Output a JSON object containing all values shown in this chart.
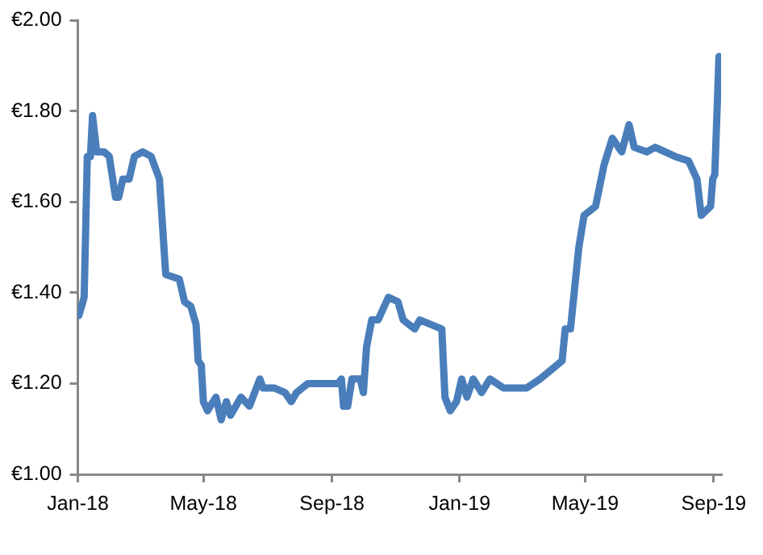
{
  "chart_data": {
    "type": "line",
    "x": [
      "2018-01-02",
      "2018-01-07",
      "2018-01-10",
      "2018-01-13",
      "2018-01-15",
      "2018-01-17",
      "2018-01-19",
      "2018-01-26",
      "2018-01-31",
      "2018-02-06",
      "2018-02-09",
      "2018-02-13",
      "2018-02-19",
      "2018-02-24",
      "2018-03-04",
      "2018-03-12",
      "2018-03-20",
      "2018-03-26",
      "2018-04-08",
      "2018-04-13",
      "2018-04-19",
      "2018-04-24",
      "2018-04-26",
      "2018-04-29",
      "2018-05-01",
      "2018-05-05",
      "2018-05-13",
      "2018-05-18",
      "2018-05-23",
      "2018-05-27",
      "2018-06-06",
      "2018-06-14",
      "2018-06-24",
      "2018-06-27",
      "2018-07-08",
      "2018-07-18",
      "2018-07-24",
      "2018-07-29",
      "2018-08-09",
      "2018-08-14",
      "2018-09-07",
      "2018-09-10",
      "2018-09-12",
      "2018-09-16",
      "2018-09-20",
      "2018-09-28",
      "2018-10-01",
      "2018-10-04",
      "2018-10-09",
      "2018-10-15",
      "2018-10-25",
      "2018-11-03",
      "2018-11-08",
      "2018-11-19",
      "2018-11-24",
      "2018-12-15",
      "2018-12-18",
      "2018-12-23",
      "2018-12-29",
      "2019-01-03",
      "2019-01-08",
      "2019-01-14",
      "2019-01-22",
      "2019-01-30",
      "2019-02-12",
      "2019-03-06",
      "2019-03-19",
      "2019-04-09",
      "2019-04-12",
      "2019-04-17",
      "2019-04-25",
      "2019-04-30",
      "2019-05-11",
      "2019-05-19",
      "2019-05-27",
      "2019-06-05",
      "2019-06-12",
      "2019-06-17",
      "2019-06-29",
      "2019-07-07",
      "2019-07-26",
      "2019-08-08",
      "2019-08-16",
      "2019-08-20",
      "2019-08-29",
      "2019-08-31",
      "2019-09-02",
      "2019-09-06"
    ],
    "series": [
      {
        "color": "#4a7ebb",
        "values": [
          1.35,
          1.39,
          1.7,
          1.7,
          1.79,
          1.75,
          1.71,
          1.71,
          1.7,
          1.61,
          1.61,
          1.65,
          1.65,
          1.7,
          1.71,
          1.7,
          1.65,
          1.44,
          1.43,
          1.38,
          1.37,
          1.33,
          1.25,
          1.24,
          1.16,
          1.14,
          1.17,
          1.12,
          1.16,
          1.13,
          1.17,
          1.15,
          1.21,
          1.19,
          1.19,
          1.18,
          1.16,
          1.18,
          1.2,
          1.2,
          1.2,
          1.21,
          1.15,
          1.15,
          1.21,
          1.21,
          1.18,
          1.28,
          1.34,
          1.34,
          1.39,
          1.38,
          1.34,
          1.32,
          1.34,
          1.32,
          1.17,
          1.14,
          1.16,
          1.21,
          1.17,
          1.21,
          1.18,
          1.21,
          1.19,
          1.19,
          1.21,
          1.25,
          1.32,
          1.32,
          1.5,
          1.57,
          1.59,
          1.68,
          1.74,
          1.71,
          1.77,
          1.72,
          1.71,
          1.72,
          1.7,
          1.69,
          1.65,
          1.57,
          1.59,
          1.65,
          1.66,
          1.92
        ]
      }
    ],
    "xlim": [
      "2018-01-01",
      "2019-09-08"
    ],
    "xticks": [
      {
        "value": "2018-01-01",
        "label": "Jan-18"
      },
      {
        "value": "2018-05-01",
        "label": "May-18"
      },
      {
        "value": "2018-09-01",
        "label": "Sep-18"
      },
      {
        "value": "2019-01-01",
        "label": "Jan-19"
      },
      {
        "value": "2019-05-01",
        "label": "May-19"
      },
      {
        "value": "2019-09-01",
        "label": "Sep-19"
      }
    ],
    "ylim": [
      1.0,
      2.0
    ],
    "yticks": [
      {
        "value": 1.0,
        "label": "€1.00"
      },
      {
        "value": 1.2,
        "label": "€1.20"
      },
      {
        "value": 1.4,
        "label": "€1.40"
      },
      {
        "value": 1.6,
        "label": "€1.60"
      },
      {
        "value": 1.8,
        "label": "€1.80"
      },
      {
        "value": 2.0,
        "label": "€2.00"
      }
    ],
    "marker": "none",
    "line_style": "solid",
    "legend": false
  }
}
